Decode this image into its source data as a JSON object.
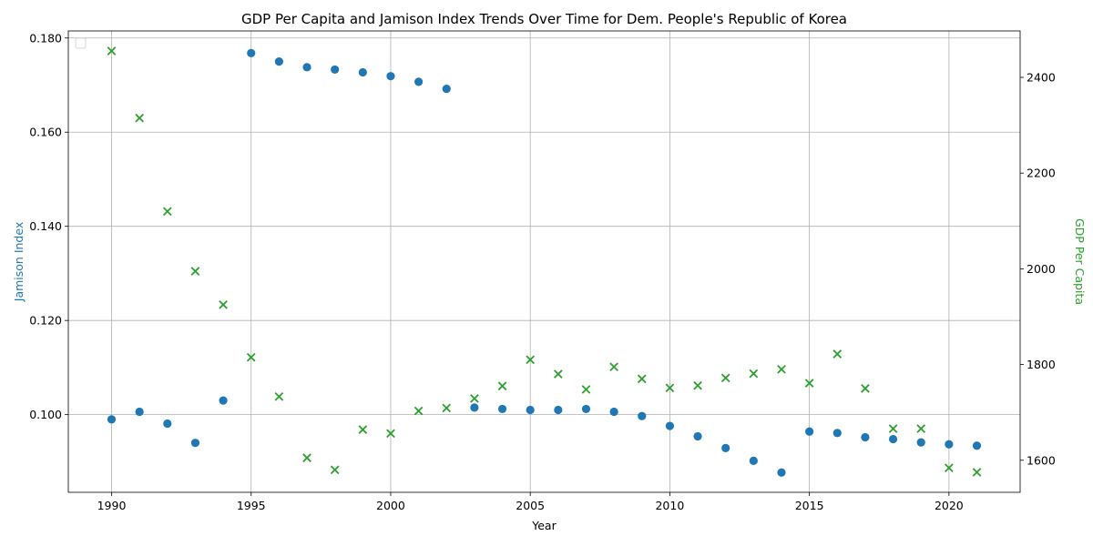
{
  "chart_data": {
    "type": "scatter",
    "title": "GDP Per Capita and Jamison Index Trends Over Time for Dem. People's Republic of Korea",
    "xlabel": "Year",
    "ylabel_left": "Jamison Index",
    "ylabel_right": "GDP Per Capita",
    "xlim": [
      1988.45,
      1992.55
    ],
    "xlim_full": [
      1988.45,
      2022.55
    ],
    "ylim_left": [
      0.0835,
      0.1815
    ],
    "ylim_right": [
      1533,
      2497
    ],
    "x_ticks": [
      1990,
      1995,
      2000,
      2005,
      2010,
      2015,
      2020
    ],
    "y_ticks_left": [
      0.1,
      0.12,
      0.14,
      0.16,
      0.18
    ],
    "y_ticks_left_labels": [
      "0.100",
      "0.120",
      "0.140",
      "0.160",
      "0.180"
    ],
    "y_ticks_right": [
      1600,
      1800,
      2000,
      2200,
      2400
    ],
    "y_ticks_right_labels": [
      "1600",
      "1800",
      "2000",
      "2200",
      "2400"
    ],
    "grid": true,
    "legend": "top-left (empty)",
    "colors": {
      "jamison": "#1f77b4",
      "gdp": "#2ca02c"
    },
    "series": [
      {
        "axis": "left",
        "marker": "circle",
        "x": [
          1990,
          1991,
          1992,
          1993,
          1994,
          1995,
          1996,
          1997,
          1998,
          1999,
          2000,
          2001,
          2002,
          2003,
          2004,
          2005,
          2006,
          2007,
          2008,
          2009,
          2010,
          2011,
          2012,
          2013,
          2014,
          2015,
          2016,
          2017,
          2018,
          2019,
          2020,
          2021
        ],
        "values": [
          0.099,
          0.1006,
          0.0981,
          0.094,
          0.103,
          0.1768,
          0.175,
          0.1738,
          0.1733,
          0.1727,
          0.1719,
          0.1707,
          0.1692,
          0.1015,
          0.1012,
          0.101,
          0.101,
          0.1012,
          0.1006,
          0.0997,
          0.0976,
          0.0954,
          0.0929,
          0.0902,
          0.0877,
          0.0964,
          0.0961,
          0.0952,
          0.0948,
          0.0941,
          0.0937,
          0.0934
        ]
      },
      {
        "axis": "right",
        "marker": "x",
        "x": [
          1990,
          1991,
          1992,
          1993,
          1994,
          1995,
          1996,
          1997,
          1998,
          1999,
          2000,
          2001,
          2002,
          2003,
          2004,
          2005,
          2006,
          2007,
          2008,
          2009,
          2010,
          2011,
          2012,
          2013,
          2014,
          2015,
          2016,
          2017,
          2018,
          2019,
          2020,
          2021
        ],
        "values": [
          2455,
          2315,
          2120,
          1995,
          1925,
          1815,
          1733,
          1605,
          1580,
          1664,
          1656,
          1703,
          1709,
          1729,
          1755,
          1810,
          1780,
          1748,
          1795,
          1770,
          1751,
          1756,
          1772,
          1781,
          1790,
          1761,
          1822,
          1750,
          1666,
          1666,
          1584,
          1575
        ]
      }
    ]
  }
}
